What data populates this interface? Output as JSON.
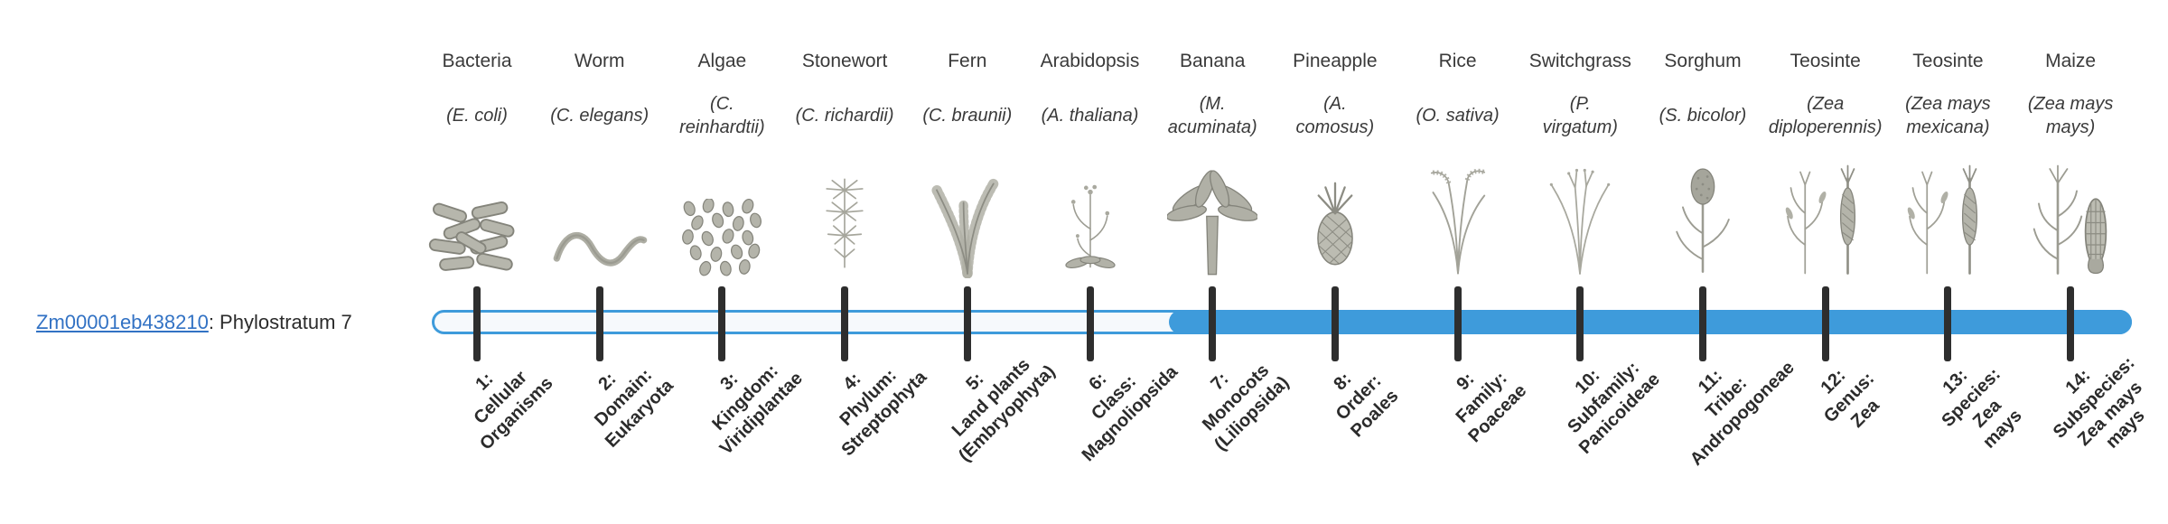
{
  "gene": {
    "id": "Zm00001eb438210",
    "suffix": ": Phylostratum 7",
    "phylostratum": 7
  },
  "colors": {
    "accent": "#3E9BDB",
    "link": "#3272C4",
    "tick": "#2E2E2E",
    "text": "#3A3A3A"
  },
  "track": {
    "total_strata": 14,
    "filled_from_stratum": 7
  },
  "organisms": [
    {
      "name": "Bacteria",
      "sci": "(E. coli)",
      "icon": "bacteria"
    },
    {
      "name": "Worm",
      "sci": "(C. elegans)",
      "icon": "worm"
    },
    {
      "name": "Algae",
      "sci": "(C.\nreinhardtii)",
      "icon": "algae"
    },
    {
      "name": "Stonewort",
      "sci": "(C. richardii)",
      "icon": "stonewort"
    },
    {
      "name": "Fern",
      "sci": "(C. braunii)",
      "icon": "fern"
    },
    {
      "name": "Arabidopsis",
      "sci": "(A. thaliana)",
      "icon": "arabidopsis"
    },
    {
      "name": "Banana",
      "sci": "(M.\nacuminata)",
      "icon": "banana"
    },
    {
      "name": "Pineapple",
      "sci": "(A.\ncomosus)",
      "icon": "pineapple"
    },
    {
      "name": "Rice",
      "sci": "(O. sativa)",
      "icon": "rice"
    },
    {
      "name": "Switchgrass",
      "sci": "(P.\nvirgatum)",
      "icon": "switchgrass"
    },
    {
      "name": "Sorghum",
      "sci": "(S. bicolor)",
      "icon": "sorghum"
    },
    {
      "name": "Teosinte",
      "sci": "(Zea\ndiploperennis)",
      "icon": "teosinte"
    },
    {
      "name": "Teosinte",
      "sci": "(Zea mays\nmexicana)",
      "icon": "teosinte"
    },
    {
      "name": "Maize",
      "sci": "(Zea mays\nmays)",
      "icon": "maize"
    }
  ],
  "strata": [
    {
      "number": 1,
      "label": "1:\nCellular\nOrganisms"
    },
    {
      "number": 2,
      "label": "2:\nDomain:\nEukaryota"
    },
    {
      "number": 3,
      "label": "3:\nKingdom:\nViridiplantae"
    },
    {
      "number": 4,
      "label": "4:\nPhylum:\nStreptophyta"
    },
    {
      "number": 5,
      "label": "5:\nLand plants\n(Embryophyta)"
    },
    {
      "number": 6,
      "label": "6:\nClass:\nMagnoliopsida"
    },
    {
      "number": 7,
      "label": "7:\nMonocots\n(Liliopsida)"
    },
    {
      "number": 8,
      "label": "8:\nOrder:\nPoales"
    },
    {
      "number": 9,
      "label": "9:\nFamily:\nPoaceae"
    },
    {
      "number": 10,
      "label": "10:\nSubfamily:\nPanicoideae"
    },
    {
      "number": 11,
      "label": "11:\nTribe:\nAndropogoneae"
    },
    {
      "number": 12,
      "label": "12:\nGenus:\nZea"
    },
    {
      "number": 13,
      "label": "13:\nSpecies:\nZea\nmays"
    },
    {
      "number": 14,
      "label": "14:\nSubspecies:\nZea mays\nmays"
    }
  ]
}
